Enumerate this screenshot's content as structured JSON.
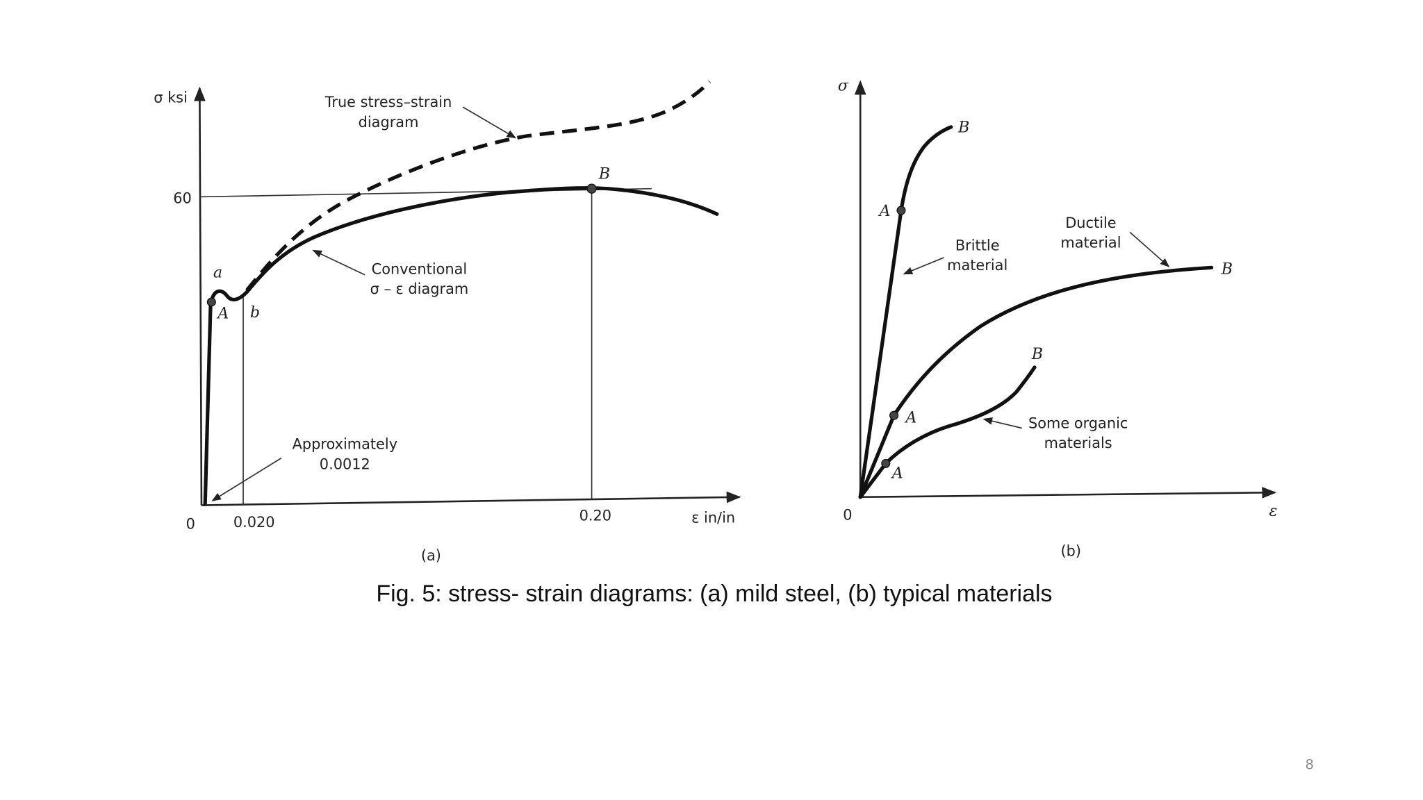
{
  "figure_a": {
    "y_axis_label": "σ ksi",
    "x_axis_label": "ε in/in",
    "origin": "0",
    "y_tick": "60",
    "x_ticks": [
      "0.020",
      "0.20"
    ],
    "point_labels": {
      "a": "a",
      "A": "A",
      "b": "b",
      "B": "B"
    },
    "annotations": {
      "true_curve": [
        "True stress–strain",
        "diagram"
      ],
      "conventional": [
        "Conventional",
        "σ – ε diagram"
      ],
      "elastic": [
        "Approximately",
        "0.0012"
      ]
    },
    "caption": "(a)"
  },
  "figure_b": {
    "y_axis_label": "σ",
    "x_axis_label": "ε",
    "origin": "0",
    "point_labels": {
      "A": "A",
      "B": "B"
    },
    "annotations": {
      "brittle": [
        "Brittle",
        "material"
      ],
      "ductile": [
        "Ductile",
        "material"
      ],
      "organic": [
        "Some organic",
        "materials"
      ]
    },
    "caption": "(b)"
  },
  "caption": "Fig. 5: stress- strain diagrams: (a) mild steel, (b) typical materials",
  "page_number": "8"
}
